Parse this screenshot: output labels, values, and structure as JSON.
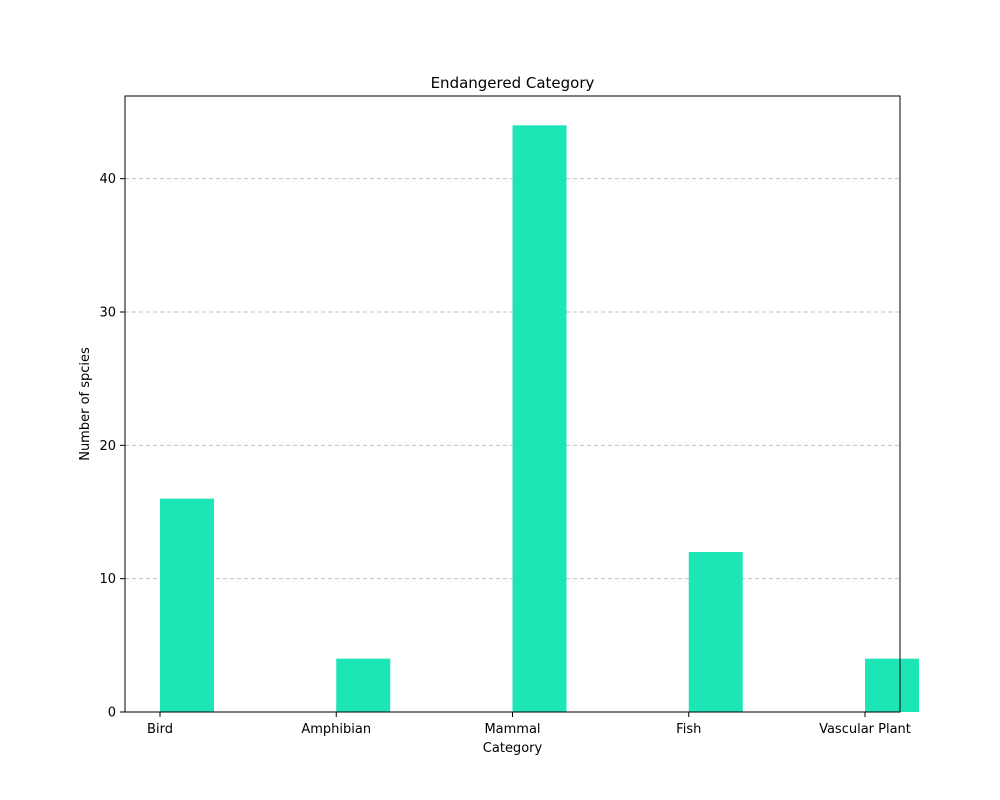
{
  "chart_data": {
    "type": "bar",
    "title": "Endangered Category",
    "xlabel": "Category",
    "ylabel": "Number of spcies",
    "categories": [
      "Bird",
      "Amphibian",
      "Mammal",
      "Fish",
      "Vascular Plant"
    ],
    "values": [
      16,
      4,
      44,
      12,
      4
    ],
    "ylim": [
      0,
      46.2
    ],
    "yticks": [
      0,
      10,
      20,
      30,
      40
    ],
    "grid": "y-dashed",
    "bar_color": "#1ce5b6",
    "grid_color": "#c0c0c0"
  }
}
